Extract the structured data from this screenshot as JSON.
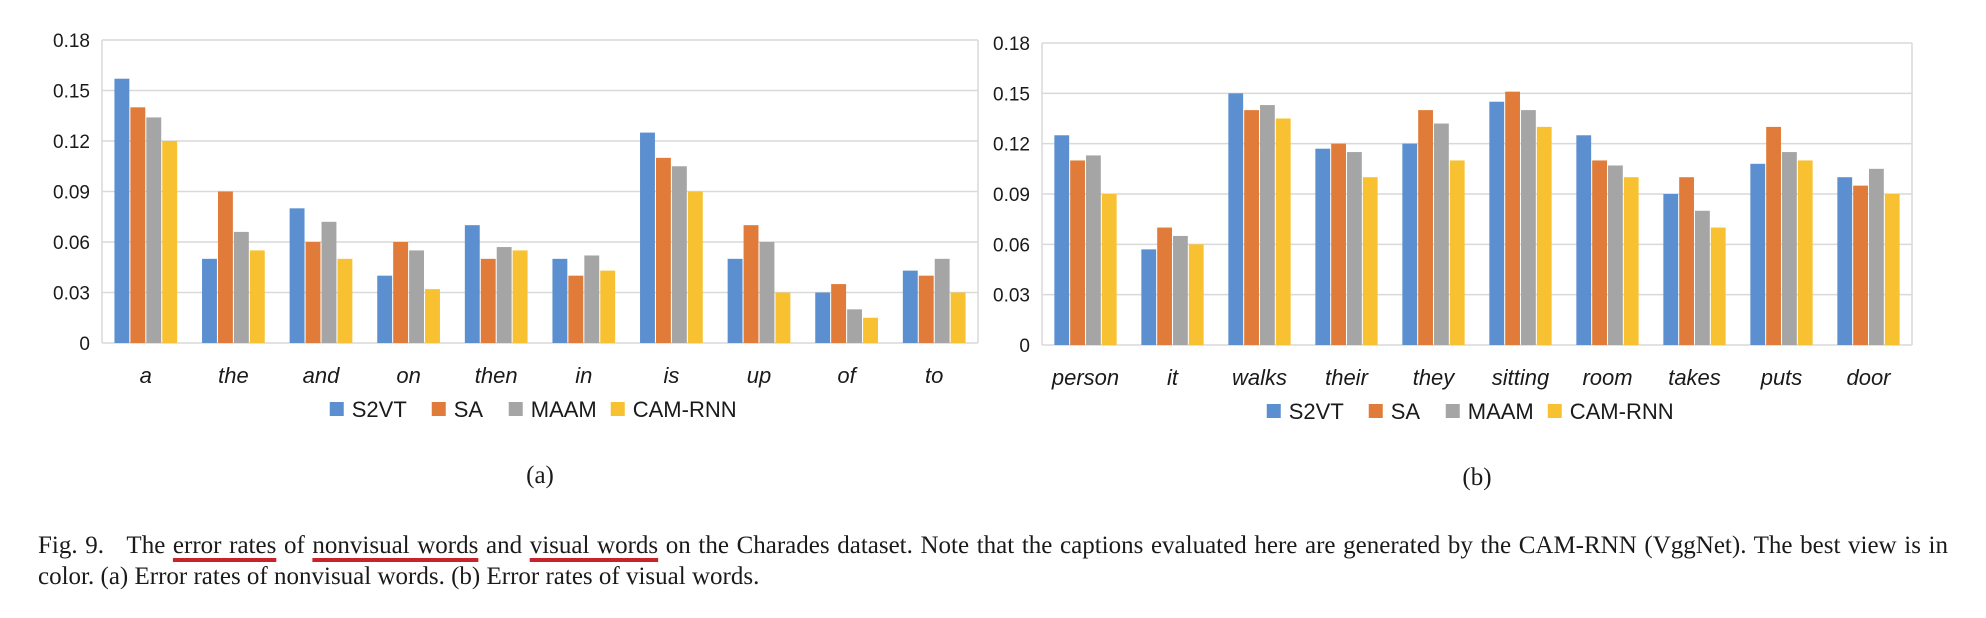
{
  "colors": {
    "S2VT": "#5b8fd0",
    "SA": "#e07b39",
    "MAAM": "#a5a5a5",
    "CAM-RNN": "#f7c132",
    "grid": "#d9d9d9",
    "underline": "#c8232c"
  },
  "chart_data": [
    {
      "type": "bar",
      "panel_label": "(a)",
      "categories": [
        "a",
        "the",
        "and",
        "on",
        "then",
        "in",
        "is",
        "up",
        "of",
        "to"
      ],
      "ylim": [
        0,
        0.18
      ],
      "yticks": [
        "0",
        "0.03",
        "0.06",
        "0.09",
        "0.12",
        "0.15",
        "0.18"
      ],
      "grid": true,
      "legend_position": "bottom",
      "series": [
        {
          "name": "S2VT",
          "values": [
            0.157,
            0.05,
            0.08,
            0.04,
            0.07,
            0.05,
            0.125,
            0.05,
            0.03,
            0.043
          ]
        },
        {
          "name": "SA",
          "values": [
            0.14,
            0.09,
            0.06,
            0.06,
            0.05,
            0.04,
            0.11,
            0.07,
            0.035,
            0.04
          ]
        },
        {
          "name": "MAAM",
          "values": [
            0.134,
            0.066,
            0.072,
            0.055,
            0.057,
            0.052,
            0.105,
            0.06,
            0.02,
            0.05
          ]
        },
        {
          "name": "CAM-RNN",
          "values": [
            0.12,
            0.055,
            0.05,
            0.032,
            0.055,
            0.043,
            0.09,
            0.03,
            0.015,
            0.03
          ]
        }
      ]
    },
    {
      "type": "bar",
      "panel_label": "(b)",
      "categories": [
        "person",
        "it",
        "walks",
        "their",
        "they",
        "sitting",
        "room",
        "takes",
        "puts",
        "door"
      ],
      "ylim": [
        0,
        0.18
      ],
      "yticks": [
        "0",
        "0.03",
        "0.06",
        "0.09",
        "0.12",
        "0.15",
        "0.18"
      ],
      "grid": true,
      "legend_position": "bottom",
      "series": [
        {
          "name": "S2VT",
          "values": [
            0.125,
            0.057,
            0.15,
            0.117,
            0.12,
            0.145,
            0.125,
            0.09,
            0.108,
            0.1
          ]
        },
        {
          "name": "SA",
          "values": [
            0.11,
            0.07,
            0.14,
            0.12,
            0.14,
            0.151,
            0.11,
            0.1,
            0.13,
            0.095
          ]
        },
        {
          "name": "MAAM",
          "values": [
            0.113,
            0.065,
            0.143,
            0.115,
            0.132,
            0.14,
            0.107,
            0.08,
            0.115,
            0.105
          ]
        },
        {
          "name": "CAM-RNN",
          "values": [
            0.09,
            0.06,
            0.135,
            0.1,
            0.11,
            0.13,
            0.1,
            0.07,
            0.11,
            0.09
          ]
        }
      ]
    }
  ],
  "caption": {
    "prefix": "Fig. 9.",
    "t1": "The ",
    "u1": "error rates",
    "t2": " of ",
    "u2": "nonvisual words",
    "t3": " and ",
    "u3": "visual words",
    "t4": " on the Charades dataset. Note that the captions evaluated here are generated by the CAM-RNN (VggNet). The best view is in color. (a) Error rates of nonvisual words. (b) Error rates of visual words."
  }
}
